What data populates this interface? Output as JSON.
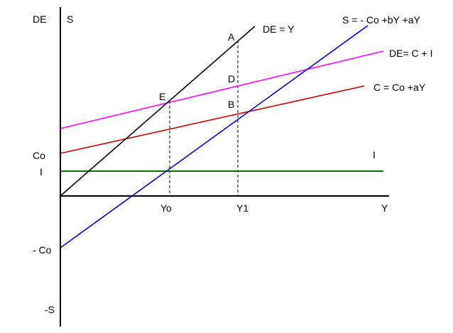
{
  "colors": {
    "axis": "#000000",
    "de_equals_y": "#000000",
    "de_line": "#ff00ff",
    "consumption": "#cc0000",
    "saving": "#0000cc",
    "investment": "#007700",
    "guide": "#000000"
  },
  "labels": {
    "y_axis_de": "DE",
    "y_axis_s": "S",
    "x_axis": "Y",
    "co": "Co",
    "i_left": "I",
    "neg_co": "- Co",
    "neg_s": "-S",
    "yo": "Yo",
    "y1": "Y1",
    "point_a": "A",
    "point_d": "D",
    "point_b": "B",
    "point_e": "E",
    "line_de_y": "DE = Y",
    "line_s": "S = - Co +bY +aY",
    "line_de": "DE= C + I",
    "line_c": "C = Co +aY",
    "line_i": "I"
  }
}
